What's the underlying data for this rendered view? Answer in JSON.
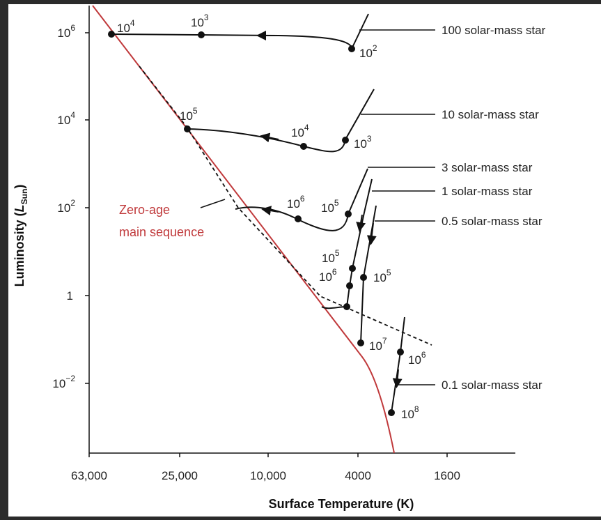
{
  "colors": {
    "frame": "#2b2b2b",
    "panel": "#ffffff",
    "ink": "#111111",
    "zams": "#c0393b"
  },
  "axes": {
    "x_label": "Surface Temperature (K)",
    "y_label_main": "Luminosity (",
    "y_label_sym": "L",
    "y_label_sub": "Sun",
    "y_label_close": ")",
    "x_ticks": [
      {
        "label": "63,000",
        "value": 63000
      },
      {
        "label": "25,000",
        "value": 25000
      },
      {
        "label": "10,000",
        "value": 10000
      },
      {
        "label": "4000",
        "value": 4000
      },
      {
        "label": "1600",
        "value": 1600
      }
    ],
    "y_ticks": [
      {
        "base": "10",
        "exp": "6",
        "value": 1000000
      },
      {
        "base": "10",
        "exp": "4",
        "value": 10000
      },
      {
        "base": "10",
        "exp": "2",
        "value": 100
      },
      {
        "base": "1",
        "exp": "",
        "value": 1
      },
      {
        "base": "10",
        "exp": "−2",
        "value": 0.01
      }
    ]
  },
  "zams_label": {
    "line1": "Zero-age",
    "line2": "main sequence"
  },
  "tracks": [
    {
      "name": "100 solar-mass star",
      "ages": [
        {
          "base": "10",
          "exp": "4"
        },
        {
          "base": "10",
          "exp": "3"
        },
        {
          "base": "10",
          "exp": "2"
        }
      ]
    },
    {
      "name": "10 solar-mass star",
      "ages": [
        {
          "base": "10",
          "exp": "5"
        },
        {
          "base": "10",
          "exp": "4"
        },
        {
          "base": "10",
          "exp": "3"
        }
      ]
    },
    {
      "name": "3 solar-mass star",
      "ages": [
        {
          "base": "10",
          "exp": "6"
        },
        {
          "base": "10",
          "exp": "5"
        }
      ]
    },
    {
      "name": "1 solar-mass star",
      "ages": [
        {
          "base": "10",
          "exp": "5"
        },
        {
          "base": "10",
          "exp": "6"
        },
        {
          "base": "10",
          "exp": "7"
        }
      ]
    },
    {
      "name": "0.5 solar-mass star",
      "ages": [
        {
          "base": "10",
          "exp": "5"
        },
        {
          "base": "10",
          "exp": "6"
        }
      ]
    },
    {
      "name": "0.1 solar-mass star",
      "ages": [
        {
          "base": "10",
          "exp": "8"
        }
      ]
    }
  ]
}
